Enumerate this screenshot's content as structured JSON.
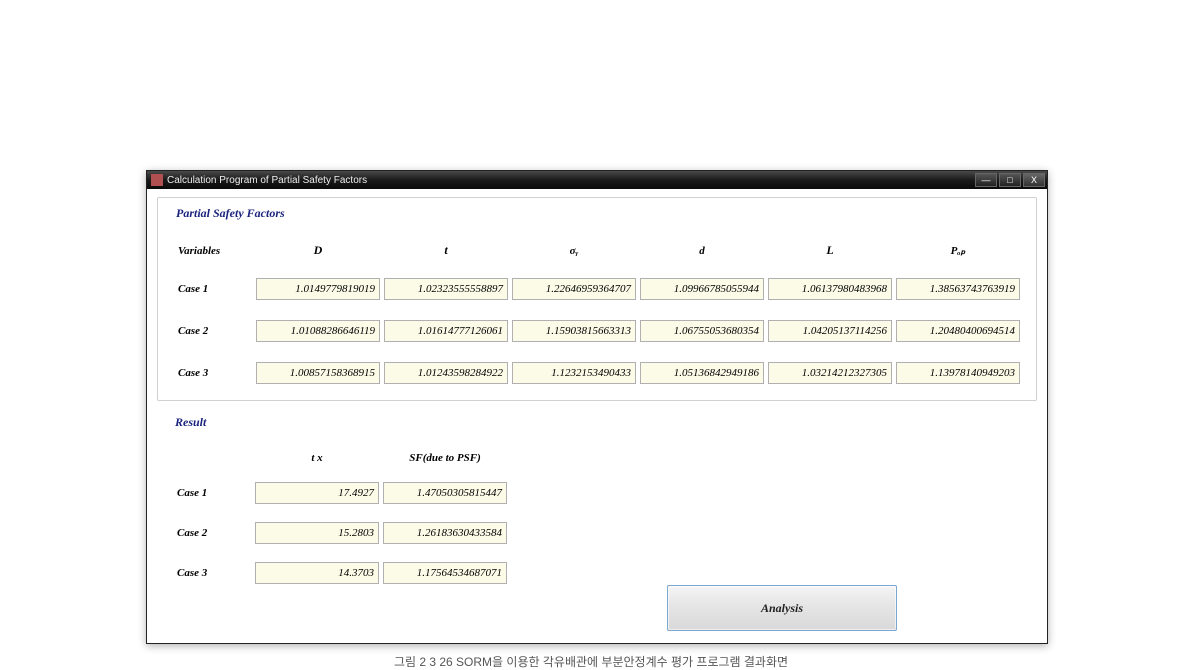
{
  "window": {
    "title": "Calculation Program of Partial Safety Factors",
    "controls": {
      "minimize": "—",
      "maximize": "□",
      "close": "X"
    }
  },
  "psf": {
    "group_title": "Partial Safety Factors",
    "headers": {
      "variables": "Variables",
      "D": "D",
      "t": "t",
      "sigma_y": "σᵧ",
      "d": "d",
      "L": "L",
      "Pop": "Pₒₚ"
    },
    "rows": [
      {
        "label": "Case 1",
        "D": "1.0149779819019",
        "t": "1.02323555558897",
        "sigma_y": "1.22646959364707",
        "d": "1.09966785055944",
        "L": "1.06137980483968",
        "Pop": "1.38563743763919"
      },
      {
        "label": "Case 2",
        "D": "1.01088286646119",
        "t": "1.01614777126061",
        "sigma_y": "1.15903815663313",
        "d": "1.06755053680354",
        "L": "1.04205137114256",
        "Pop": "1.20480400694514"
      },
      {
        "label": "Case 3",
        "D": "1.00857158368915",
        "t": "1.01243598284922",
        "sigma_y": "1.1232153490433",
        "d": "1.05136842949186",
        "L": "1.03214212327305",
        "Pop": "1.13978140949203"
      }
    ]
  },
  "result": {
    "group_title": "Result",
    "headers": {
      "tx": "t x",
      "sf": "SF(due to PSF)"
    },
    "rows": [
      {
        "label": "Case 1",
        "tx": "17.4927",
        "sf": "1.47050305815447"
      },
      {
        "label": "Case 2",
        "tx": "15.2803",
        "sf": "1.26183630433584"
      },
      {
        "label": "Case 3",
        "tx": "14.3703",
        "sf": "1.17564534687071"
      }
    ]
  },
  "analysis_button": "Analysis",
  "caption": "그림 2 3 26 SORM을 이용한 각유배관에 부분안정계수 평가 프로그램 결과화면",
  "colors": {
    "titlebar_gradient_top": "#4a4a4a",
    "titlebar_gradient_bottom": "#0a0a0a",
    "group_title_color": "#1a237e",
    "cell_bg": "#fbfbe8",
    "cell_border": "#b0b0b0",
    "button_border": "#7aa7d0",
    "window_bg": "#ffffff"
  }
}
